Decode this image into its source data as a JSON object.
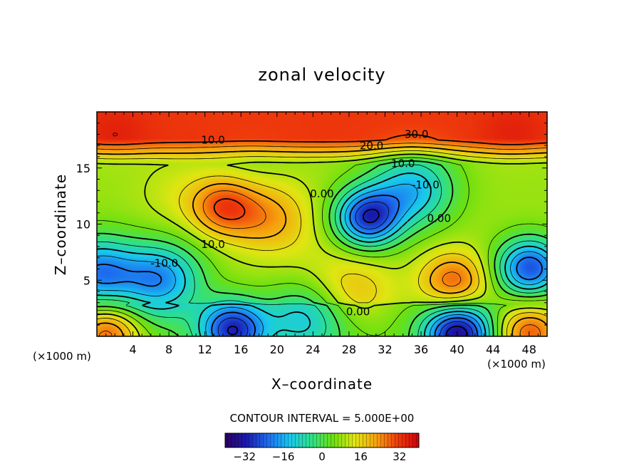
{
  "chart_data": {
    "type": "heatmap",
    "title": "zonal velocity",
    "xlabel": "X–coordinate",
    "ylabel": "Z–coordinate",
    "x_unit_left": "(×1000 m)",
    "x_unit_right": "(×1000 m)",
    "xlim": [
      0,
      50
    ],
    "ylim": [
      0,
      20
    ],
    "xticks": [
      4,
      8,
      12,
      16,
      20,
      24,
      28,
      32,
      36,
      40,
      44,
      48
    ],
    "yticks": [
      5,
      10,
      15
    ],
    "contour_interval_text": "CONTOUR INTERVAL = 5.000E+00",
    "colorbar": {
      "range": [
        -40,
        40
      ],
      "ticks": [
        -32,
        -16,
        0,
        16,
        32
      ],
      "colors": [
        "#2b0060",
        "#1a1ab0",
        "#1e6cf0",
        "#18c8ef",
        "#2ee08a",
        "#6be010",
        "#e0e612",
        "#f6a30e",
        "#f03c0c",
        "#d0000a"
      ]
    },
    "contour_labels": [
      {
        "text": "10.0",
        "x": 12.9,
        "z": 17.5
      },
      {
        "text": "20.0",
        "x": 30.5,
        "z": 17.0
      },
      {
        "text": "30.0",
        "x": 35.5,
        "z": 18.0
      },
      {
        "text": "10.0",
        "x": 34.0,
        "z": 15.4
      },
      {
        "text": "-10.0",
        "x": 36.5,
        "z": 13.5
      },
      {
        "text": "0.00",
        "x": 25.0,
        "z": 12.7
      },
      {
        "text": "0.00",
        "x": 38.0,
        "z": 10.5
      },
      {
        "text": "10.0",
        "x": 12.9,
        "z": 8.2
      },
      {
        "text": "-10.0",
        "x": 7.5,
        "z": 6.5
      },
      {
        "text": "0.00",
        "x": 29.0,
        "z": 2.2
      }
    ],
    "extrema": [
      {
        "x": 2,
        "z": 18,
        "value": 35
      },
      {
        "x": 12,
        "z": 19,
        "value": 32
      },
      {
        "x": 33,
        "z": 19,
        "value": 32
      },
      {
        "x": 46,
        "z": 18,
        "value": 35
      },
      {
        "x": 14,
        "z": 11.5,
        "value": 28
      },
      {
        "x": 19,
        "z": 10.5,
        "value": 22
      },
      {
        "x": 9,
        "z": 12.5,
        "value": 12
      },
      {
        "x": 17,
        "z": 15,
        "value": 6
      },
      {
        "x": 30,
        "z": 10.5,
        "value": -28
      },
      {
        "x": 35,
        "z": 13,
        "value": -14
      },
      {
        "x": 39.5,
        "z": 4.8,
        "value": 28
      },
      {
        "x": 28.5,
        "z": 4,
        "value": 18
      },
      {
        "x": 0,
        "z": 5.5,
        "value": -20
      },
      {
        "x": 7,
        "z": 5,
        "value": -18
      },
      {
        "x": 48,
        "z": 6,
        "value": -25
      },
      {
        "x": 15,
        "z": 0.5,
        "value": -30
      },
      {
        "x": 40,
        "z": 0.2,
        "value": -35
      },
      {
        "x": 1,
        "z": 0.3,
        "value": 28
      },
      {
        "x": 48,
        "z": 0.3,
        "value": 28
      },
      {
        "x": 23,
        "z": 1.5,
        "value": -12
      },
      {
        "x": 46,
        "z": 14,
        "value": 8
      },
      {
        "x": 24,
        "z": 6.5,
        "value": 10
      }
    ],
    "grid": false
  }
}
